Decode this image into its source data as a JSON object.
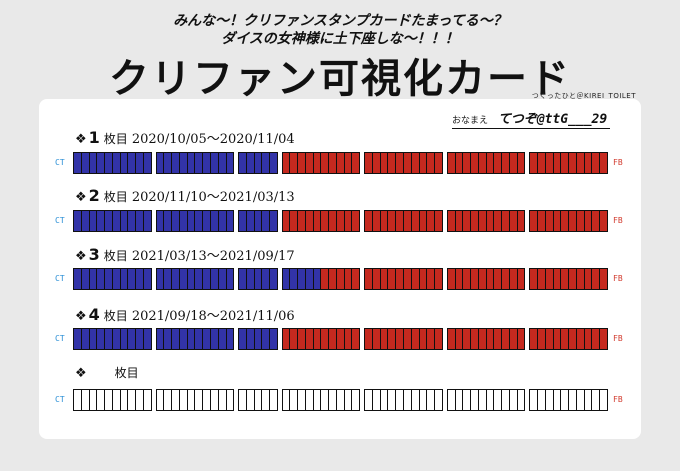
{
  "header": {
    "line1": "みんな～！クリファンスタンプカードたまってる～？",
    "line2": "ダイスの女神様に土下座しな～！！！",
    "title": "クリファン可視化カード",
    "credit": "つくったひと＠KIREI_TOILET"
  },
  "name_field": {
    "label": "おなまえ",
    "value": "てつぞ@ttG___29"
  },
  "end_labels": {
    "start": "CT",
    "end": "FB"
  },
  "colors": {
    "ct": "#3233a8",
    "fb": "#c5291f",
    "empty": "#ffffff",
    "ct_text": "#2b8fd6",
    "fb_text": "#d23b2e"
  },
  "rows": [
    {
      "diamond": "❖",
      "number": "1",
      "mai": "枚目",
      "dates": "2020/10/05～2020/11/04",
      "ct_count": 25
    },
    {
      "diamond": "❖",
      "number": "2",
      "mai": "枚目",
      "dates": "2020/11/10～2021/03/13",
      "ct_count": 25
    },
    {
      "diamond": "❖",
      "number": "3",
      "mai": "枚目",
      "dates": "2021/03/13～2021/09/17",
      "ct_count": 30
    },
    {
      "diamond": "❖",
      "number": "4",
      "mai": "枚目",
      "dates": "2021/09/18～2021/11/06",
      "ct_count": 25
    },
    {
      "diamond": "❖",
      "number": "",
      "mai": "枚目",
      "dates": "",
      "ct_count": 0
    }
  ],
  "card_layout": {
    "groups": [
      10,
      10,
      5,
      10,
      10,
      10,
      10
    ],
    "total_cells": 65
  }
}
